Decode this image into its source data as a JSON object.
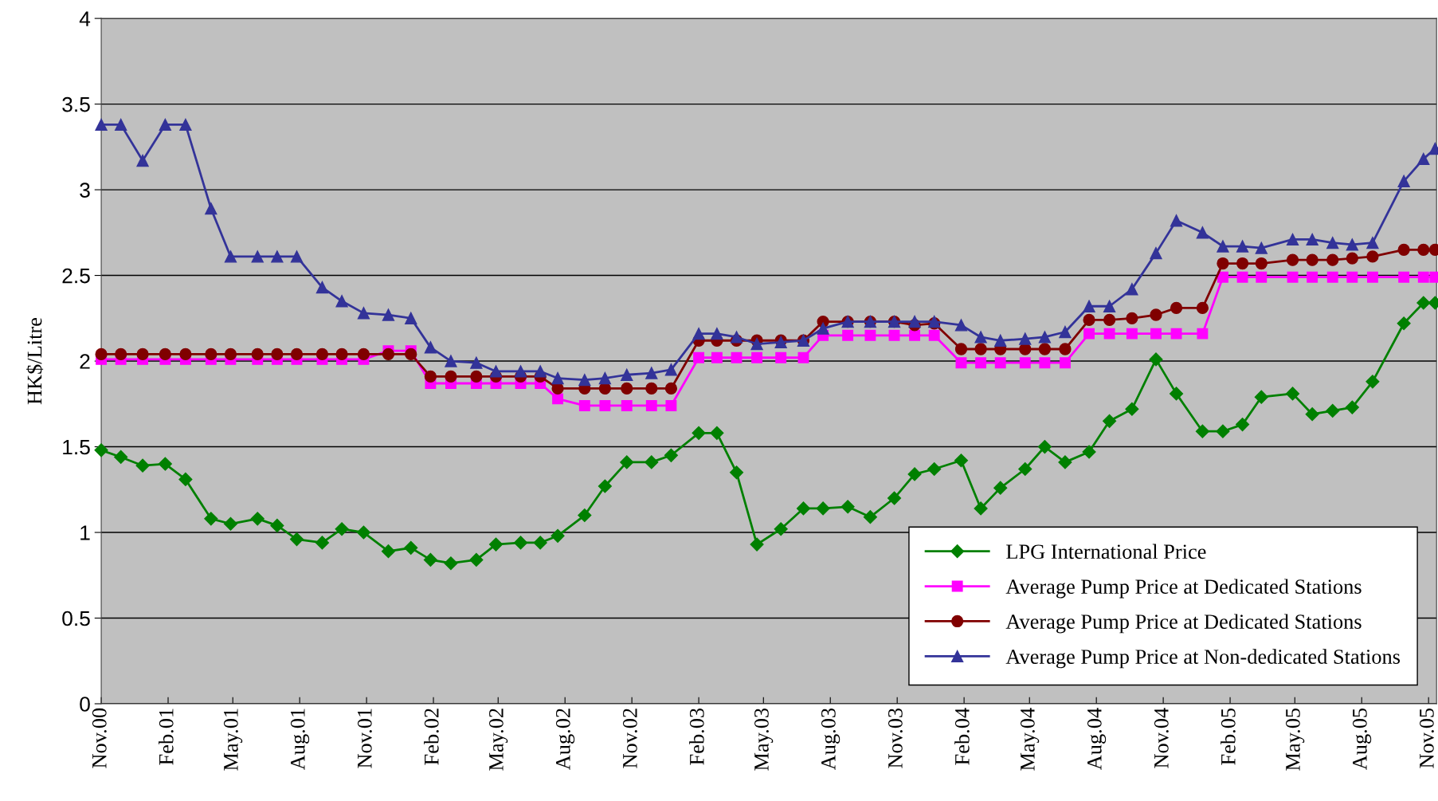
{
  "chart_data": {
    "type": "line",
    "ylabel": "HK$/Litre",
    "x": [
      "2000-11-01",
      "2000-11-28",
      "2000-12-28",
      "2001-01-28",
      "2001-02-25",
      "2001-04-01",
      "2001-04-28",
      "2001-06-04",
      "2001-07-01",
      "2001-07-28",
      "2001-09-01",
      "2001-09-28",
      "2001-10-28",
      "2001-12-01",
      "2002-01-01",
      "2002-01-28",
      "2002-02-25",
      "2002-04-01",
      "2002-04-28",
      "2002-06-01",
      "2002-06-28",
      "2002-07-22",
      "2002-08-28",
      "2002-09-25",
      "2002-10-25",
      "2002-11-28",
      "2002-12-25",
      "2003-02-01",
      "2003-02-26",
      "2003-03-25",
      "2003-04-22",
      "2003-05-25",
      "2003-06-25",
      "2003-07-22",
      "2003-08-25",
      "2003-09-25",
      "2003-10-28",
      "2003-11-25",
      "2003-12-22",
      "2004-01-28",
      "2004-02-24",
      "2004-03-22",
      "2004-04-25",
      "2004-05-22",
      "2004-06-19",
      "2004-07-22",
      "2004-08-19",
      "2004-09-19",
      "2004-10-22",
      "2004-11-19",
      "2004-12-25",
      "2005-01-22",
      "2005-02-18",
      "2005-03-16",
      "2005-04-28",
      "2005-05-25",
      "2005-06-22",
      "2005-07-19",
      "2005-08-16",
      "2005-09-28",
      "2005-10-25",
      "2005-11-10"
    ],
    "series": [
      {
        "name": "LPG International Price",
        "color": "#008000",
        "marker": "diamond",
        "values": [
          1.48,
          1.44,
          1.39,
          1.4,
          1.31,
          1.08,
          1.05,
          1.08,
          1.04,
          0.96,
          0.94,
          1.02,
          1.0,
          0.89,
          0.91,
          0.84,
          0.82,
          0.84,
          0.93,
          0.94,
          0.94,
          0.98,
          1.1,
          1.27,
          1.41,
          1.41,
          1.45,
          1.58,
          1.58,
          1.35,
          0.93,
          1.02,
          1.14,
          1.14,
          1.15,
          1.09,
          1.2,
          1.34,
          1.37,
          1.42,
          1.14,
          1.26,
          1.37,
          1.5,
          1.41,
          1.47,
          1.65,
          1.72,
          2.01,
          1.81,
          1.59,
          1.59,
          1.63,
          1.79,
          1.81,
          1.69,
          1.71,
          1.73,
          1.88,
          2.22,
          2.34,
          2.34
        ]
      },
      {
        "name": "Average Pump Price at Dedicated Stations",
        "color": "#ff00ff",
        "marker": "square",
        "values": [
          2.01,
          2.01,
          2.01,
          2.01,
          2.01,
          2.01,
          2.01,
          2.01,
          2.01,
          2.01,
          2.01,
          2.01,
          2.01,
          2.06,
          2.06,
          1.87,
          1.87,
          1.87,
          1.87,
          1.87,
          1.87,
          1.78,
          1.74,
          1.74,
          1.74,
          1.74,
          1.74,
          2.02,
          2.02,
          2.02,
          2.02,
          2.02,
          2.02,
          2.15,
          2.15,
          2.15,
          2.15,
          2.15,
          2.15,
          1.99,
          1.99,
          1.99,
          1.99,
          1.99,
          1.99,
          2.16,
          2.16,
          2.16,
          2.16,
          2.16,
          2.16,
          2.49,
          2.49,
          2.49,
          2.49,
          2.49,
          2.49,
          2.49,
          2.49,
          2.49,
          2.49,
          2.49
        ]
      },
      {
        "name": "Average Pump Price at Dedicated Stations",
        "color": "#800000",
        "marker": "circle",
        "values": [
          2.04,
          2.04,
          2.04,
          2.04,
          2.04,
          2.04,
          2.04,
          2.04,
          2.04,
          2.04,
          2.04,
          2.04,
          2.04,
          2.04,
          2.04,
          1.91,
          1.91,
          1.91,
          1.91,
          1.91,
          1.91,
          1.84,
          1.84,
          1.84,
          1.84,
          1.84,
          1.84,
          2.12,
          2.12,
          2.12,
          2.12,
          2.12,
          2.12,
          2.23,
          2.23,
          2.23,
          2.23,
          2.21,
          2.22,
          2.07,
          2.07,
          2.07,
          2.07,
          2.07,
          2.07,
          2.24,
          2.24,
          2.25,
          2.27,
          2.31,
          2.31,
          2.57,
          2.57,
          2.57,
          2.59,
          2.59,
          2.59,
          2.6,
          2.61,
          2.65,
          2.65,
          2.65
        ]
      },
      {
        "name": "Average Pump Price at Non-dedicated Stations",
        "color": "#333399",
        "marker": "triangle",
        "values": [
          3.38,
          3.38,
          3.17,
          3.38,
          3.38,
          2.89,
          2.61,
          2.61,
          2.61,
          2.61,
          2.43,
          2.35,
          2.28,
          2.27,
          2.25,
          2.08,
          2.0,
          1.99,
          1.94,
          1.94,
          1.94,
          1.9,
          1.89,
          1.9,
          1.92,
          1.93,
          1.95,
          2.16,
          2.16,
          2.14,
          2.1,
          2.11,
          2.12,
          2.19,
          2.23,
          2.23,
          2.23,
          2.23,
          2.23,
          2.21,
          2.14,
          2.12,
          2.13,
          2.14,
          2.17,
          2.32,
          2.32,
          2.42,
          2.63,
          2.82,
          2.75,
          2.67,
          2.67,
          2.66,
          2.71,
          2.71,
          2.69,
          2.68,
          2.69,
          3.05,
          3.18,
          3.24
        ]
      }
    ],
    "xlim": [
      "2000-11-01",
      "2005-11-12"
    ],
    "xticks": [
      {
        "value": "2000-11-01",
        "label": "Nov.00"
      },
      {
        "value": "2001-02-01",
        "label": "Feb.01"
      },
      {
        "value": "2001-05-01",
        "label": "May.01"
      },
      {
        "value": "2001-08-01",
        "label": "Aug.01"
      },
      {
        "value": "2001-11-01",
        "label": "Nov.01"
      },
      {
        "value": "2002-02-01",
        "label": "Feb.02"
      },
      {
        "value": "2002-05-01",
        "label": "May.02"
      },
      {
        "value": "2002-08-01",
        "label": "Aug.02"
      },
      {
        "value": "2002-11-01",
        "label": "Nov.02"
      },
      {
        "value": "2003-02-01",
        "label": "Feb.03"
      },
      {
        "value": "2003-05-01",
        "label": "May.03"
      },
      {
        "value": "2003-08-01",
        "label": "Aug.03"
      },
      {
        "value": "2003-11-01",
        "label": "Nov.03"
      },
      {
        "value": "2004-02-01",
        "label": "Feb.04"
      },
      {
        "value": "2004-05-01",
        "label": "May.04"
      },
      {
        "value": "2004-08-01",
        "label": "Aug.04"
      },
      {
        "value": "2004-11-01",
        "label": "Nov.04"
      },
      {
        "value": "2005-02-01",
        "label": "Feb.05"
      },
      {
        "value": "2005-05-01",
        "label": "May.05"
      },
      {
        "value": "2005-08-01",
        "label": "Aug.05"
      },
      {
        "value": "2005-11-01",
        "label": "Nov.05"
      }
    ],
    "ylim": [
      0,
      4
    ],
    "yticks": [
      0,
      0.5,
      1,
      1.5,
      2,
      2.5,
      3,
      3.5,
      4
    ],
    "grid": "y",
    "legend": "bottom right",
    "line_style": "solid"
  }
}
